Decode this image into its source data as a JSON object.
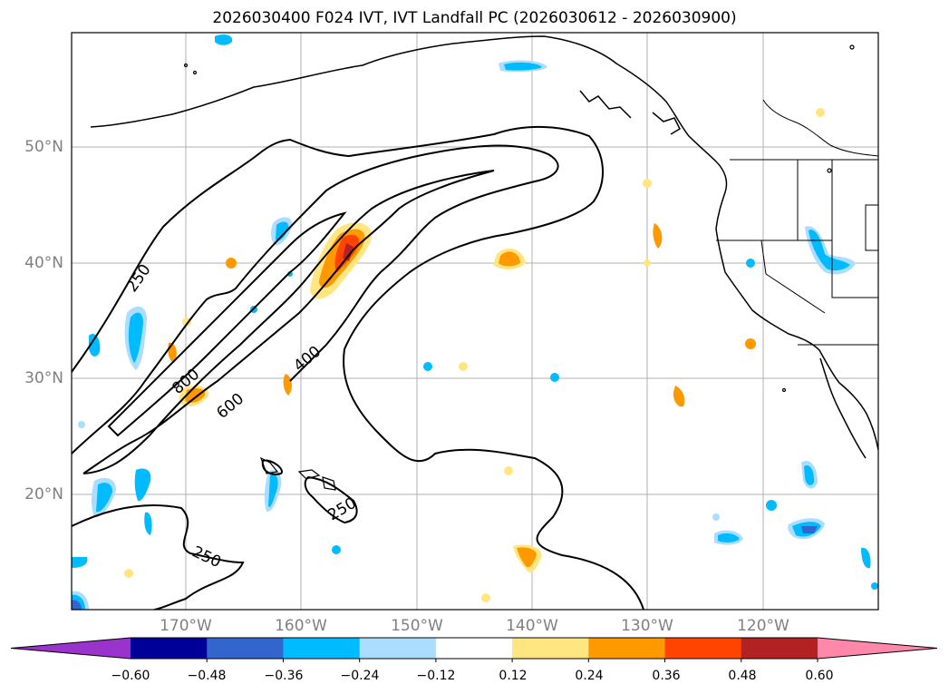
{
  "title": "2026030400 F024 IVT, IVT Landfall PC (2026030612 - 2026030900)",
  "map": {
    "lat_labels": [
      "50°N",
      "40°N",
      "30°N",
      "20°N"
    ],
    "lon_labels": [
      "170°W",
      "160°W",
      "150°W",
      "140°W",
      "130°W",
      "120°W"
    ],
    "contour_labels": [
      "250",
      "800",
      "600",
      "400",
      "250",
      "250"
    ],
    "contour_levels": [
      250,
      400,
      600,
      800
    ]
  },
  "colorbar": {
    "colors": [
      "#9933cc",
      "#000099",
      "#3366cc",
      "#00bbff",
      "#aaddff",
      "#ffffff",
      "#ffe680",
      "#ff9900",
      "#ff4400",
      "#b22222",
      "#ff88aa"
    ],
    "tick_labels": [
      "−0.60",
      "−0.48",
      "−0.36",
      "−0.24",
      "−0.12",
      "0.12",
      "0.24",
      "0.36",
      "0.48",
      "0.60"
    ]
  }
}
